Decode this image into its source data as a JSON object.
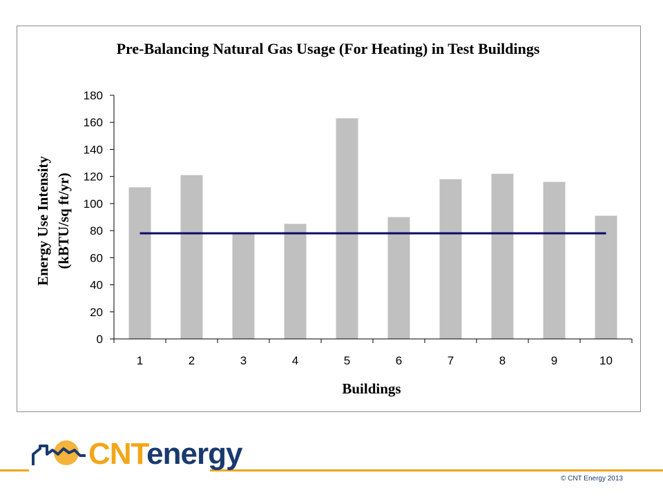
{
  "chart_data": {
    "type": "bar",
    "title": "Pre-Balancing Natural Gas Usage (For Heating) in Test Buildings",
    "xlabel": "Buildings",
    "ylabel_line1": "Energy Use Intensity",
    "ylabel_line2": "(kBTU/sq ft/yr)",
    "categories": [
      "1",
      "2",
      "3",
      "4",
      "5",
      "6",
      "7",
      "8",
      "9",
      "10"
    ],
    "values": [
      112,
      121,
      78,
      85,
      163,
      90,
      118,
      122,
      116,
      91
    ],
    "reference_line": 78,
    "ylim": [
      0,
      180
    ],
    "yticks": [
      "0",
      "20",
      "40",
      "60",
      "80",
      "100",
      "120",
      "140",
      "160",
      "180"
    ],
    "grid": false,
    "legend": "none",
    "bar_color": "#c0c0c0",
    "line_color": "#0a0a6e"
  },
  "footer": {
    "logo_part1": "CNT",
    "logo_part2": "energy",
    "copyright": "© CNT Energy 2013",
    "accent_color": "#f2a618",
    "brand_color": "#1a3a6e"
  }
}
